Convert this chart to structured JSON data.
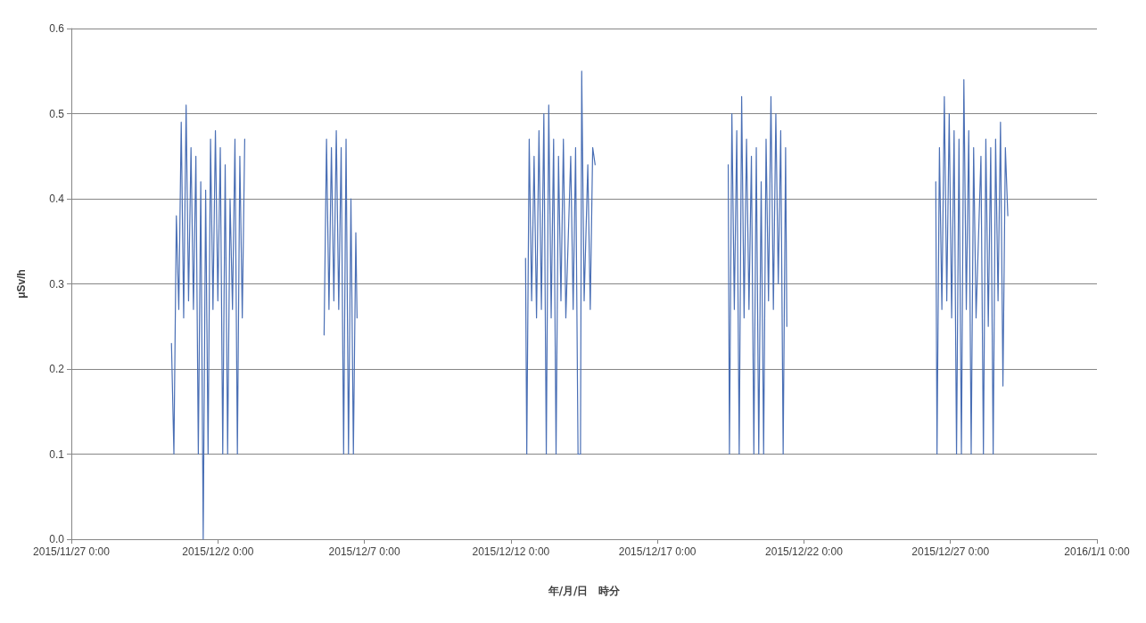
{
  "chart_data": {
    "type": "line",
    "xlabel": "年/月/日　時分",
    "ylabel": "μSv/h",
    "marker": "none",
    "grid": "y",
    "xlim": [
      "2015-11-27",
      "2016-01-01"
    ],
    "xticks": [
      {
        "value": "2015-11-27",
        "label": "2015/11/27 0:00"
      },
      {
        "value": "2015-12-02",
        "label": "2015/12/2 0:00"
      },
      {
        "value": "2015-12-07",
        "label": "2015/12/7 0:00"
      },
      {
        "value": "2015-12-12",
        "label": "2015/12/12 0:00"
      },
      {
        "value": "2015-12-17",
        "label": "2015/12/17 0:00"
      },
      {
        "value": "2015-12-22",
        "label": "2015/12/22 0:00"
      },
      {
        "value": "2015-12-27",
        "label": "2015/12/27 0:00"
      },
      {
        "value": "2016-01-01",
        "label": "2016/1/1 0:00"
      }
    ],
    "ylim": [
      0,
      0.6
    ],
    "yticks": [
      {
        "value": 0,
        "label": "0.0"
      },
      {
        "value": 0.1,
        "label": "0.1"
      },
      {
        "value": 0.2,
        "label": "0.2"
      },
      {
        "value": 0.3,
        "label": "0.3"
      },
      {
        "value": 0.4,
        "label": "0.4"
      },
      {
        "value": 0.5,
        "label": "0.5"
      },
      {
        "value": 0.6,
        "label": "0.6"
      }
    ],
    "series": [
      {
        "color": "#4a6fb5",
        "x": [
          "2015-11-30T10:00",
          "2015-11-30T12:00",
          "2015-11-30T14:00",
          "2015-11-30T16:00",
          "2015-11-30T18:00",
          "2015-11-30T20:00",
          "2015-11-30T22:00",
          "2015-12-01T00:00",
          "2015-12-01T02:00",
          "2015-12-01T04:00",
          "2015-12-01T06:00",
          "2015-12-01T08:00",
          "2015-12-01T10:00",
          "2015-12-01T12:00",
          "2015-12-01T14:00",
          "2015-12-01T16:00",
          "2015-12-01T18:00",
          "2015-12-01T20:00",
          "2015-12-01T22:00",
          "2015-12-02T00:00",
          "2015-12-02T02:00",
          "2015-12-02T04:00",
          "2015-12-02T06:00",
          "2015-12-02T08:00",
          "2015-12-02T10:00",
          "2015-12-02T12:00",
          "2015-12-02T14:00",
          "2015-12-02T16:00",
          "2015-12-02T18:00",
          "2015-12-02T20:00",
          "2015-12-02T22:00",
          "2015-12-04T00:00",
          "2015-12-05T15:00",
          "2015-12-05T17:00",
          "2015-12-05T19:00",
          "2015-12-05T21:00",
          "2015-12-05T23:00",
          "2015-12-06T01:00",
          "2015-12-06T03:00",
          "2015-12-06T05:00",
          "2015-12-06T07:00",
          "2015-12-06T09:00",
          "2015-12-06T11:00",
          "2015-12-06T13:00",
          "2015-12-06T15:00",
          "2015-12-06T17:00",
          "2015-12-06T18:00",
          "2015-12-10T00:00",
          "2015-12-12T12:00",
          "2015-12-12T13:00",
          "2015-12-12T15:00",
          "2015-12-12T17:00",
          "2015-12-12T19:00",
          "2015-12-12T21:00",
          "2015-12-12T23:00",
          "2015-12-13T01:00",
          "2015-12-13T03:00",
          "2015-12-13T05:00",
          "2015-12-13T07:00",
          "2015-12-13T09:00",
          "2015-12-13T11:00",
          "2015-12-13T13:00",
          "2015-12-13T15:00",
          "2015-12-13T17:00",
          "2015-12-13T19:00",
          "2015-12-13T21:00",
          "2015-12-14T01:00",
          "2015-12-14T03:00",
          "2015-12-14T05:00",
          "2015-12-14T07:00",
          "2015-12-14T09:00",
          "2015-12-14T10:00",
          "2015-12-14T12:00",
          "2015-12-14T15:00",
          "2015-12-14T17:00",
          "2015-12-14T19:00",
          "2015-12-14T21:00",
          "2015-12-17T00:00",
          "2015-12-19T10:00",
          "2015-12-19T11:00",
          "2015-12-19T13:00",
          "2015-12-19T15:00",
          "2015-12-19T17:00",
          "2015-12-19T19:00",
          "2015-12-19T21:00",
          "2015-12-19T23:00",
          "2015-12-20T01:00",
          "2015-12-20T03:00",
          "2015-12-20T05:00",
          "2015-12-20T07:00",
          "2015-12-20T09:00",
          "2015-12-20T11:00",
          "2015-12-20T13:00",
          "2015-12-20T15:00",
          "2015-12-20T17:00",
          "2015-12-20T19:00",
          "2015-12-20T21:00",
          "2015-12-20T23:00",
          "2015-12-21T01:00",
          "2015-12-21T03:00",
          "2015-12-21T05:00",
          "2015-12-21T07:00",
          "2015-12-21T09:00",
          "2015-12-21T10:00",
          "2015-12-24T00:00",
          "2015-12-26T12:00",
          "2015-12-26T13:00",
          "2015-12-26T15:00",
          "2015-12-26T17:00",
          "2015-12-26T19:00",
          "2015-12-26T21:00",
          "2015-12-26T23:00",
          "2015-12-27T01:00",
          "2015-12-27T03:00",
          "2015-12-27T05:00",
          "2015-12-27T07:00",
          "2015-12-27T09:00",
          "2015-12-27T11:00",
          "2015-12-27T13:00",
          "2015-12-27T15:00",
          "2015-12-27T17:00",
          "2015-12-27T19:00",
          "2015-12-27T21:00",
          "2015-12-28T01:00",
          "2015-12-28T03:00",
          "2015-12-28T05:00",
          "2015-12-28T07:00",
          "2015-12-28T09:00",
          "2015-12-28T11:00",
          "2015-12-28T13:00",
          "2015-12-28T15:00",
          "2015-12-28T17:00",
          "2015-12-28T19:00",
          "2015-12-28T21:00",
          "2015-12-28T23:00"
        ],
        "values": [
          0.23,
          0.1,
          0.38,
          0.27,
          0.49,
          0.26,
          0.51,
          0.28,
          0.46,
          0.27,
          0.45,
          0.1,
          0.42,
          0.0,
          0.41,
          0.1,
          0.47,
          0.27,
          0.48,
          0.28,
          0.46,
          0.1,
          0.44,
          0.1,
          0.4,
          0.27,
          0.47,
          0.1,
          0.45,
          0.26,
          0.47,
          null,
          0.24,
          0.47,
          0.27,
          0.46,
          0.28,
          0.48,
          0.27,
          0.46,
          0.1,
          0.47,
          0.1,
          0.4,
          0.1,
          0.36,
          0.26,
          null,
          0.33,
          0.1,
          0.47,
          0.28,
          0.45,
          0.26,
          0.48,
          0.27,
          0.5,
          0.1,
          0.51,
          0.26,
          0.47,
          0.1,
          0.45,
          0.28,
          0.47,
          0.26,
          0.45,
          0.27,
          0.46,
          0.1,
          0.1,
          0.55,
          0.28,
          0.44,
          0.27,
          0.46,
          0.44,
          null,
          0.44,
          0.1,
          0.5,
          0.27,
          0.48,
          0.1,
          0.52,
          0.26,
          0.47,
          0.27,
          0.45,
          0.1,
          0.46,
          0.1,
          0.42,
          0.1,
          0.47,
          0.28,
          0.52,
          0.27,
          0.5,
          0.3,
          0.48,
          0.1,
          0.46,
          0.25,
          null,
          0.42,
          0.1,
          0.46,
          0.27,
          0.52,
          0.28,
          0.5,
          0.26,
          0.48,
          0.1,
          0.47,
          0.1,
          0.54,
          0.27,
          0.48,
          0.1,
          0.46,
          0.26,
          0.45,
          0.1,
          0.47,
          0.25,
          0.46,
          0.1,
          0.47,
          0.28,
          0.49,
          0.18,
          0.46,
          0.38
        ]
      }
    ]
  }
}
